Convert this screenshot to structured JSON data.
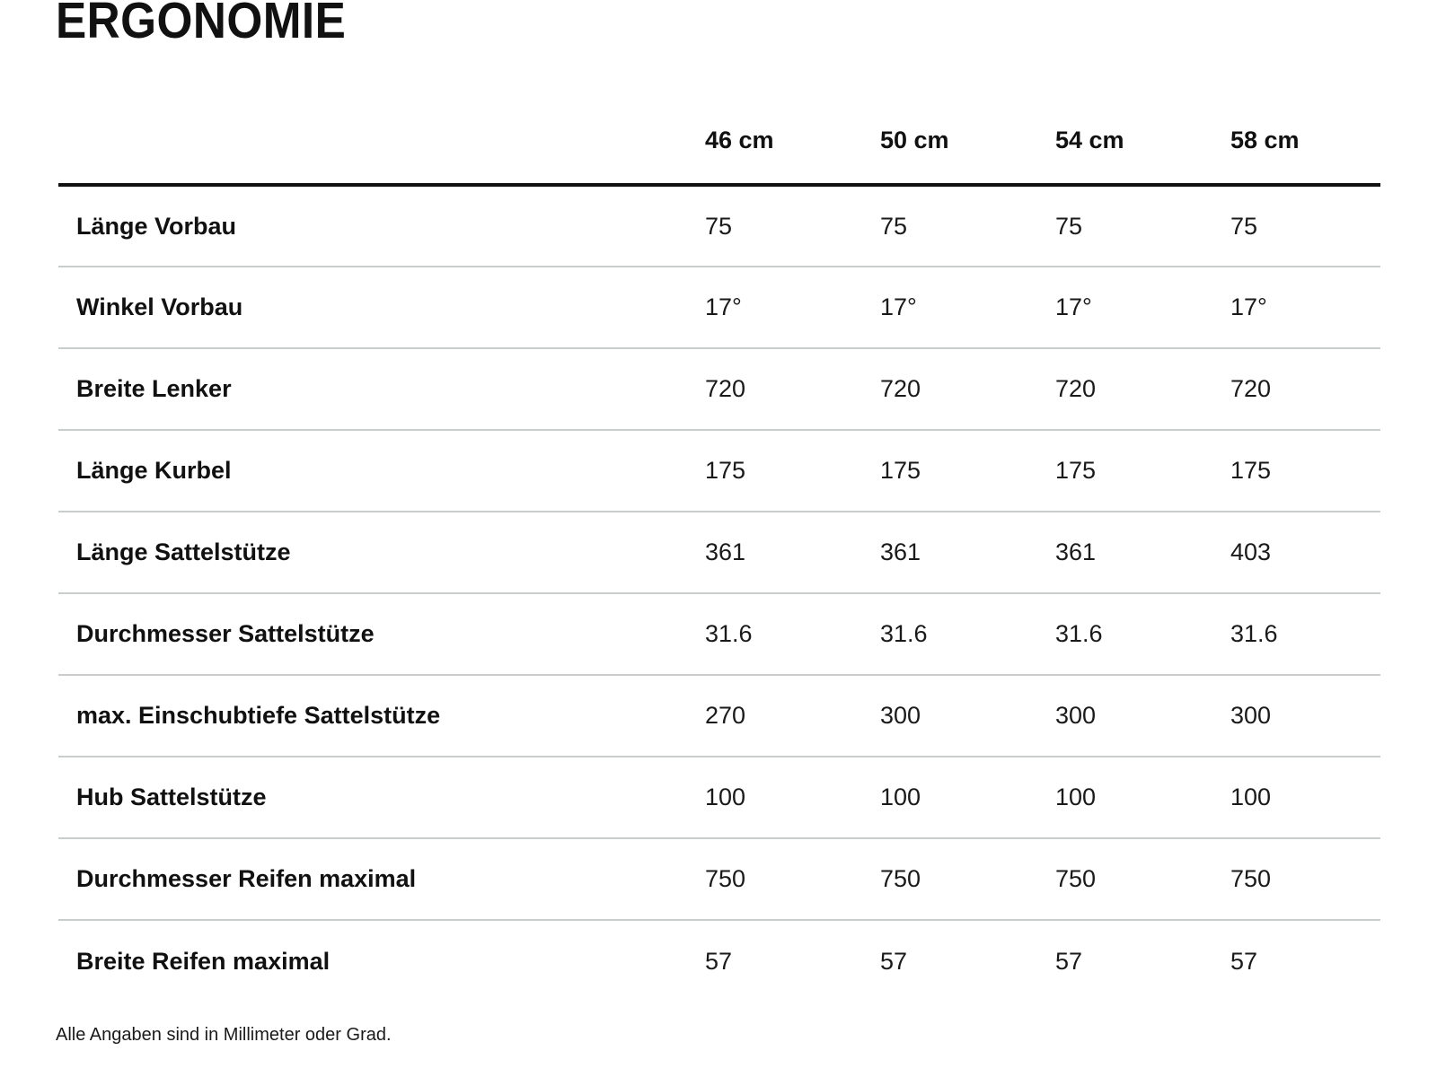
{
  "section": {
    "title": "ERGONOMIE",
    "footnote": "Alle Angaben sind in Millimeter oder Grad."
  },
  "table": {
    "size_columns": [
      "46 cm",
      "50 cm",
      "54 cm",
      "58 cm"
    ],
    "rows": [
      {
        "label": "Länge Vorbau",
        "values": [
          "75",
          "75",
          "75",
          "75"
        ]
      },
      {
        "label": "Winkel Vorbau",
        "values": [
          "17°",
          "17°",
          "17°",
          "17°"
        ]
      },
      {
        "label": "Breite Lenker",
        "values": [
          "720",
          "720",
          "720",
          "720"
        ]
      },
      {
        "label": "Länge Kurbel",
        "values": [
          "175",
          "175",
          "175",
          "175"
        ]
      },
      {
        "label": "Länge Sattelstütze",
        "values": [
          "361",
          "361",
          "361",
          "403"
        ]
      },
      {
        "label": "Durchmesser Sattelstütze",
        "values": [
          "31.6",
          "31.6",
          "31.6",
          "31.6"
        ]
      },
      {
        "label": "max. Einschubtiefe Sattelstütze",
        "values": [
          "270",
          "300",
          "300",
          "300"
        ]
      },
      {
        "label": "Hub Sattelstütze",
        "values": [
          "100",
          "100",
          "100",
          "100"
        ]
      },
      {
        "label": "Durchmesser Reifen maximal",
        "values": [
          "750",
          "750",
          "750",
          "750"
        ]
      },
      {
        "label": "Breite Reifen maximal",
        "values": [
          "57",
          "57",
          "57",
          "57"
        ]
      }
    ]
  },
  "colors": {
    "background": "#ffffff",
    "text": "#111111",
    "header_rule": "#111111",
    "row_separator": "#c9cdcd"
  }
}
